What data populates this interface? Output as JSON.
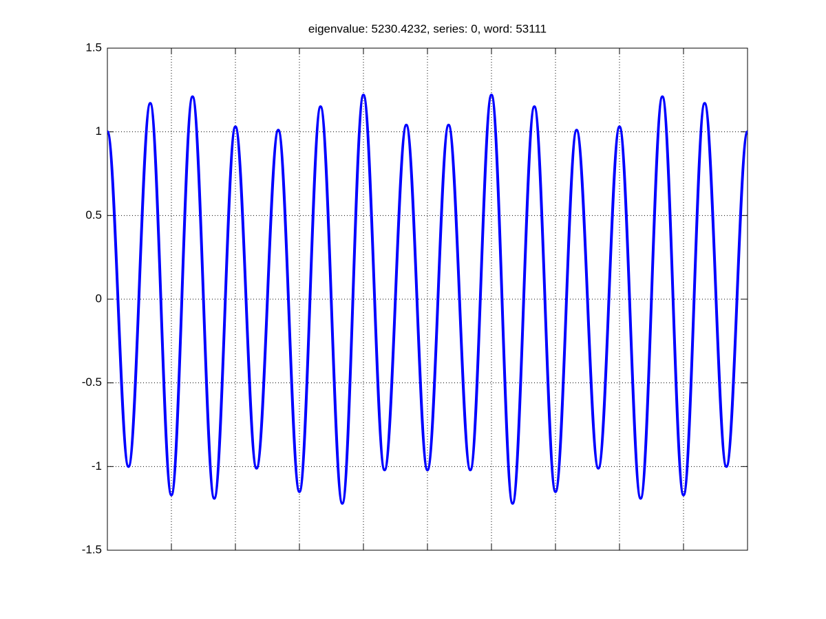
{
  "chart_data": {
    "type": "line",
    "title": "eigenvalue: 5230.4232, series: 0, word: 53111",
    "x": [
      0,
      0.33,
      0.67,
      1,
      1.33,
      1.67,
      2,
      2.33,
      2.67,
      3,
      3.33,
      3.67,
      4,
      4.33,
      4.67,
      5,
      5.33,
      5.67,
      6,
      6.33,
      6.67,
      7,
      7.33,
      7.67,
      8,
      8.33,
      8.67,
      9,
      9.33,
      9.67,
      10
    ],
    "series": [
      {
        "color": "#0000ff",
        "values": [
          1.0,
          -1.0,
          1.17,
          -1.17,
          1.21,
          -1.19,
          1.03,
          -1.01,
          1.01,
          -1.15,
          1.15,
          -1.22,
          1.22,
          -1.02,
          1.04,
          -1.02,
          1.04,
          -1.02,
          1.22,
          -1.22,
          1.15,
          -1.15,
          1.01,
          -1.01,
          1.03,
          -1.19,
          1.21,
          -1.17,
          1.17,
          -1.0,
          1.0
        ]
      }
    ],
    "xlim": [
      0,
      10
    ],
    "xticks": [
      1,
      2,
      3,
      4,
      5,
      6,
      7,
      8,
      9
    ],
    "ylim": [
      -1.5,
      1.5
    ],
    "yticks": [
      -1.5,
      -1,
      -0.5,
      0,
      0.5,
      1,
      1.5
    ],
    "grid": true
  }
}
